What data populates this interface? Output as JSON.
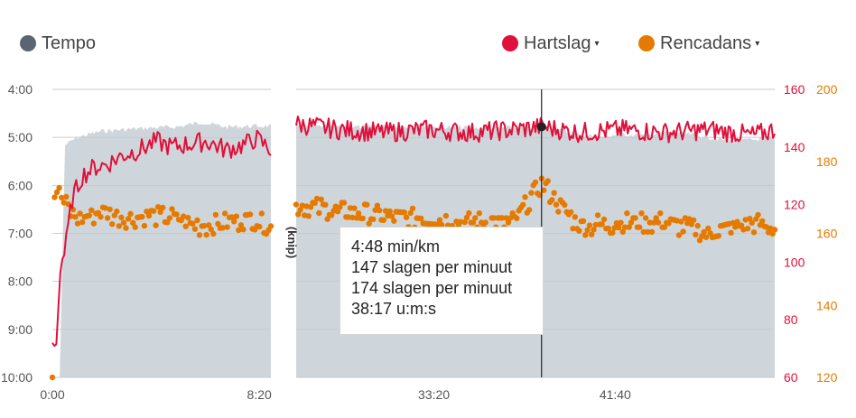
{
  "legend": {
    "tempo": "Tempo",
    "heart_rate": "Hartslag",
    "cadence": "Rencadans",
    "caret": "▾"
  },
  "tooltip": {
    "pace": "4:48 min/km",
    "heart_rate": "147 slagen per minuut",
    "cadence": "174 slagen per minuut",
    "time": "38:17 u:m:s"
  },
  "axis_label_hidden": "(knip)",
  "colors": {
    "tempo": "#5a6472",
    "tempo_area": "#cfd6db",
    "heart_rate": "#e0103a",
    "cadence": "#e57a00"
  },
  "chart_data": {
    "type": "line",
    "x_unit": "m:ss",
    "x_segments": [
      {
        "range": [
          "0:00",
          "~8:50"
        ],
        "ticks": [
          "0:00",
          "8:20"
        ]
      },
      {
        "range": [
          "~27:00",
          "~49:00"
        ],
        "ticks": [
          "33:20",
          "41:40"
        ]
      }
    ],
    "y_left": {
      "label": "",
      "ticks": [
        "4:00",
        "5:00",
        "6:00",
        "7:00",
        "8:00",
        "9:00",
        "10:00"
      ],
      "range": [
        "4:00",
        "10:00"
      ],
      "inverted": true
    },
    "y_right_hr": {
      "ticks": [
        60,
        80,
        100,
        120,
        140,
        160
      ],
      "range": [
        60,
        160
      ]
    },
    "y_right_cad": {
      "ticks": [
        120,
        140,
        160,
        180,
        200
      ],
      "range": [
        120,
        200
      ]
    },
    "grid": true,
    "cursor": {
      "time": "38:17",
      "pace": "4:48",
      "heart_rate": 147,
      "cadence": 174
    },
    "series": [
      {
        "name": "Tempo",
        "kind": "area",
        "points_min": [
          [
            0,
            600
          ],
          [
            0.3,
            600
          ],
          [
            0.5,
            310
          ],
          [
            1,
            300
          ],
          [
            2,
            292
          ],
          [
            3,
            290
          ],
          [
            4,
            288
          ],
          [
            5,
            287
          ],
          [
            6,
            281
          ],
          [
            7,
            287
          ],
          [
            8,
            286
          ],
          [
            8.8,
            286
          ],
          [
            27,
            286
          ],
          [
            30,
            287
          ],
          [
            33,
            286
          ],
          [
            35,
            288
          ],
          [
            38,
            288
          ],
          [
            39,
            290
          ],
          [
            40,
            297
          ],
          [
            41,
            299
          ],
          [
            42,
            296
          ],
          [
            43,
            298
          ],
          [
            44,
            293
          ],
          [
            45,
            296
          ],
          [
            46,
            300
          ],
          [
            47,
            305
          ],
          [
            48,
            303
          ],
          [
            49,
            300
          ]
        ],
        "value_unit": "s/km"
      },
      {
        "name": "Hartslag",
        "kind": "line",
        "points_min": [
          [
            0,
            72
          ],
          [
            0.15,
            70
          ],
          [
            0.35,
            101
          ],
          [
            0.5,
            103
          ],
          [
            0.8,
            122
          ],
          [
            1.2,
            130
          ],
          [
            1.7,
            133
          ],
          [
            2.2,
            134
          ],
          [
            2.8,
            137
          ],
          [
            3.5,
            139
          ],
          [
            4.2,
            142
          ],
          [
            4.8,
            140
          ],
          [
            5.5,
            141
          ],
          [
            6.2,
            142
          ],
          [
            7.0,
            139
          ],
          [
            7.8,
            141
          ],
          [
            8.2,
            143
          ],
          [
            8.8,
            139
          ],
          [
            27,
            148
          ],
          [
            29,
            146
          ],
          [
            31,
            145
          ],
          [
            33,
            146
          ],
          [
            35,
            145
          ],
          [
            37,
            146
          ],
          [
            38.28,
            147
          ],
          [
            40,
            145
          ],
          [
            42,
            146
          ],
          [
            44,
            145
          ],
          [
            46,
            146
          ],
          [
            48,
            144
          ],
          [
            49,
            146
          ]
        ],
        "value_unit": "bpm"
      },
      {
        "name": "Rencadans",
        "kind": "scatter",
        "points_min": [
          [
            0,
            120
          ],
          [
            0.1,
            174
          ],
          [
            0.3,
            171
          ],
          [
            0.5,
            168
          ],
          [
            1,
            164
          ],
          [
            2,
            166
          ],
          [
            3,
            164
          ],
          [
            4,
            165
          ],
          [
            5,
            164
          ],
          [
            6,
            162
          ],
          [
            7,
            163
          ],
          [
            8,
            164
          ],
          [
            8.8,
            162
          ],
          [
            27,
            168
          ],
          [
            29,
            166
          ],
          [
            31,
            165
          ],
          [
            33,
            164
          ],
          [
            35,
            163
          ],
          [
            37,
            163
          ],
          [
            38.28,
            174
          ],
          [
            40,
            162
          ],
          [
            42,
            163
          ],
          [
            44,
            163
          ],
          [
            46,
            160
          ],
          [
            48,
            163
          ],
          [
            49,
            161
          ]
        ],
        "value_unit": "spm"
      }
    ]
  }
}
